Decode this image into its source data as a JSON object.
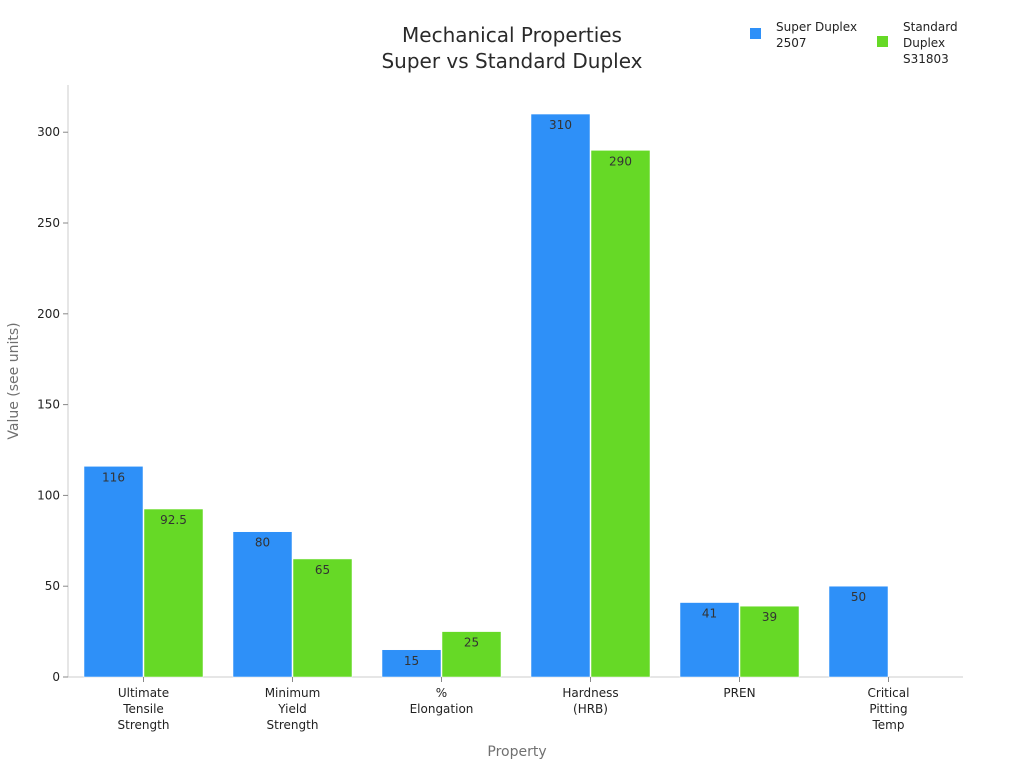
{
  "chart_data": {
    "type": "bar",
    "title": [
      "Mechanical Properties",
      "Super vs Standard Duplex"
    ],
    "xlabel": "Property",
    "ylabel": "Value (see units)",
    "categories": [
      [
        "Ultimate",
        "Tensile",
        "Strength"
      ],
      [
        "Minimum",
        "Yield",
        "Strength"
      ],
      [
        "%",
        "Elongation"
      ],
      [
        "Hardness",
        "(HRB)"
      ],
      [
        "PREN"
      ],
      [
        "Critical",
        "Pitting",
        "Temp"
      ]
    ],
    "series": [
      {
        "name": [
          "Super Duplex",
          "2507"
        ],
        "color": "#2e90f8",
        "values": [
          116,
          80,
          15,
          310,
          41,
          50
        ],
        "labels": [
          "116",
          "80",
          "15",
          "310",
          "41",
          "50"
        ]
      },
      {
        "name": [
          "Standard",
          "Duplex",
          "S31803"
        ],
        "color": "#66d926",
        "values": [
          92.5,
          65,
          25,
          290,
          39,
          null
        ],
        "labels": [
          "92.5",
          "65",
          "25",
          "290",
          "39",
          ""
        ]
      }
    ],
    "ylim": [
      0,
      326
    ],
    "yticks": [
      0,
      50,
      100,
      150,
      200,
      250,
      300
    ],
    "grid": false,
    "legend_position": "top-right"
  }
}
